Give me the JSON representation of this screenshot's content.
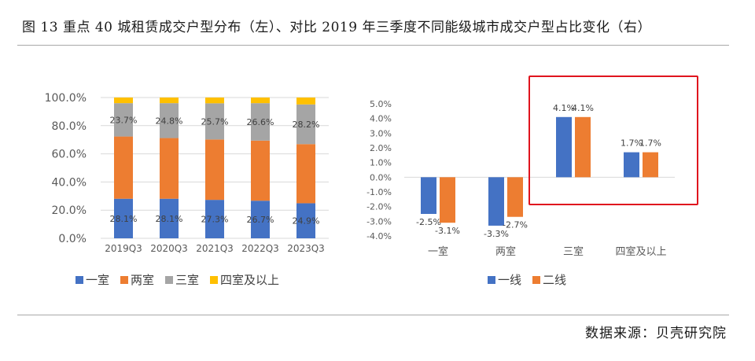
{
  "figure": {
    "title": "图 13   重点 40 城租赁成交户型分布（左）、对比 2019 年三季度不同能级城市成交户型占比变化（右）",
    "source": "数据来源：贝壳研究院"
  },
  "colors": {
    "blue": "#4472c4",
    "orange": "#ed7d31",
    "gray": "#a5a5a5",
    "yellow": "#ffc000",
    "highlight": "#e0141e"
  },
  "chart_data": [
    {
      "type": "bar",
      "stacked": true,
      "categories": [
        "2019Q3",
        "2020Q3",
        "2021Q3",
        "2022Q3",
        "2023Q3"
      ],
      "series": [
        {
          "name": "一室",
          "values": [
            28.1,
            28.1,
            27.3,
            26.7,
            24.9
          ],
          "color": "#4472c4"
        },
        {
          "name": "两室",
          "values": [
            44.2,
            43.1,
            42.9,
            42.7,
            42.0
          ],
          "color": "#ed7d31"
        },
        {
          "name": "三室",
          "values": [
            23.7,
            24.8,
            25.7,
            26.6,
            28.2
          ],
          "color": "#a5a5a5"
        },
        {
          "name": "四室及以上",
          "values": [
            4.0,
            4.0,
            4.1,
            4.0,
            4.9
          ],
          "color": "#ffc000"
        }
      ],
      "data_labels": {
        "一室": [
          "28.1%",
          "28.1%",
          "27.3%",
          "26.7%",
          "24.9%"
        ],
        "三室": [
          "23.7%",
          "24.8%",
          "25.7%",
          "26.6%",
          "28.2%"
        ]
      },
      "yticks": [
        "0.0%",
        "20.0%",
        "40.0%",
        "60.0%",
        "80.0%",
        "100.0%"
      ],
      "ylim": [
        0,
        100
      ],
      "grid": true,
      "legend_position": "bottom"
    },
    {
      "type": "bar",
      "categories": [
        "一室",
        "两室",
        "三室",
        "四室及以上"
      ],
      "series": [
        {
          "name": "一线",
          "values": [
            -2.5,
            -3.3,
            4.1,
            1.7
          ],
          "labels": [
            "-2.5%",
            "-3.3%",
            "4.1%",
            "1.7%"
          ],
          "color": "#4472c4"
        },
        {
          "name": "二线",
          "values": [
            -3.1,
            -2.7,
            4.1,
            1.7
          ],
          "labels": [
            "-3.1%",
            "-2.7%",
            "4.1%",
            "1.7%"
          ],
          "color": "#ed7d31"
        }
      ],
      "yticks": [
        "-4.0%",
        "-3.0%",
        "-2.0%",
        "-1.0%",
        "0.0%",
        "1.0%",
        "2.0%",
        "3.0%",
        "4.0%",
        "5.0%"
      ],
      "ylim": [
        -4,
        5
      ],
      "grid": false,
      "legend_position": "bottom",
      "highlight": "三室 and 四室及以上 boxed in red"
    }
  ]
}
